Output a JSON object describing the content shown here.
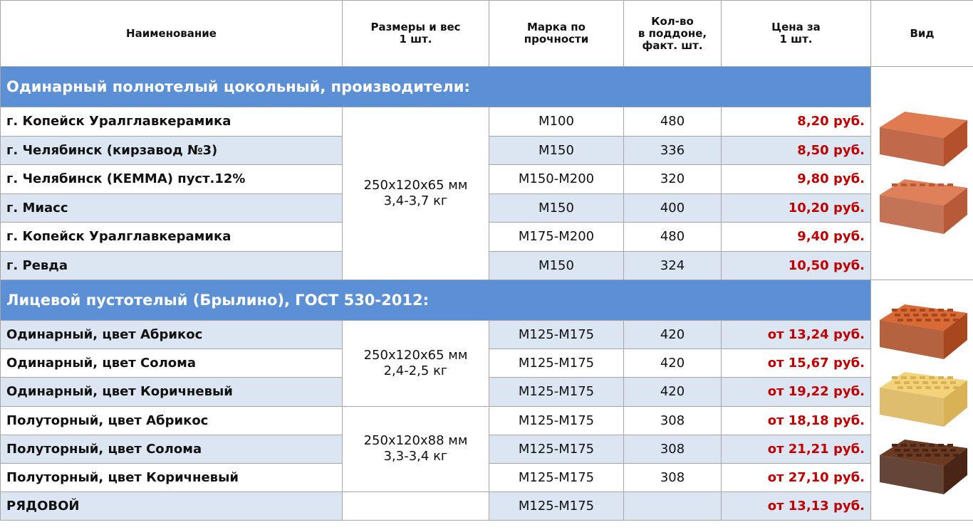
{
  "header": [
    [
      "Наименование"
    ],
    [
      "Размеры и вес",
      "1 шт."
    ],
    [
      "Марка по",
      "прочности"
    ],
    [
      "Кол-во",
      "в поддоне,",
      "факт. шт."
    ],
    [
      "Цена за",
      "1 шт."
    ],
    [
      "Вид"
    ]
  ],
  "sections": [
    {
      "title": "Одинарный полнотелый цокольный, производители:",
      "groups": [
        {
          "size": [
            "250x120x65 мм",
            "3,4-3,7 кг"
          ],
          "rows": [
            {
              "name": "г. Копейск Уралглавкерамика",
              "grade": "М100",
              "qty": "480",
              "price": "8,20 руб."
            },
            {
              "name": "г. Челябинск (кирзавод №3)",
              "grade": "М150",
              "qty": "336",
              "price": "8,50 руб."
            },
            {
              "name": "г. Челябинск (КЕММА) пуст.12%",
              "grade": "М150-М200",
              "qty": "320",
              "price": "9,80 руб."
            },
            {
              "name": "г. Миасс",
              "grade": "М150",
              "qty": "400",
              "price": "10,20 руб."
            },
            {
              "name": "г. Копейск Уралглавкерамика",
              "grade": "М175-М200",
              "qty": "480",
              "price": "9,40 руб."
            },
            {
              "name": "г. Ревда",
              "grade": "М150",
              "qty": "324",
              "price": "10,50 руб."
            }
          ]
        }
      ]
    },
    {
      "title": "Лицевой пустотелый (Брылино), ГОСТ 530-2012:",
      "groups": [
        {
          "size": [
            "250x120x65 мм",
            "2,4-2,5 кг"
          ],
          "rows": [
            {
              "name": "Одинарный, цвет Абрикос",
              "grade": "М125-М175",
              "qty": "420",
              "price": "от 13,24 руб."
            },
            {
              "name": "Одинарный, цвет Солома",
              "grade": "М125-М175",
              "qty": "420",
              "price": "от 15,67 руб."
            },
            {
              "name": "Одинарный, цвет Коричневый",
              "grade": "М125-М175",
              "qty": "420",
              "price": "от 19,22 руб."
            }
          ]
        },
        {
          "size": [
            "250x120x88 мм",
            "3,3-3,4 кг"
          ],
          "rows": [
            {
              "name": "Полуторный, цвет Абрикос",
              "grade": "М125-М175",
              "qty": "308",
              "price": "от 18,18 руб."
            },
            {
              "name": "Полуторный, цвет Солома",
              "grade": "М125-М175",
              "qty": "308",
              "price": "от 21,21 руб."
            },
            {
              "name": "Полуторный, цвет Коричневый",
              "grade": "М125-М175",
              "qty": "308",
              "price": "от 27,10 руб."
            }
          ]
        },
        {
          "rows": [
            {
              "name": "РЯДОВОЙ",
              "grade": "М125-М175",
              "price": "от 13,13 руб."
            }
          ]
        }
      ]
    }
  ]
}
